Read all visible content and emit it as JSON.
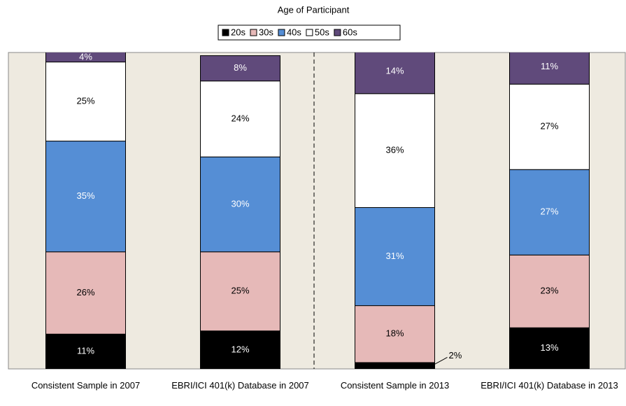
{
  "chart_data": {
    "type": "stacked_bar",
    "title": "Age of Participant",
    "categories": [
      "Consistent Sample in 2007",
      "EBRI/ICI 401(k) Database in 2007",
      "Consistent Sample in 2013",
      "EBRI/ICI 401(k) Database in 2013"
    ],
    "series": [
      {
        "name": "20s",
        "color": "#000000",
        "values": [
          11,
          12,
          2,
          13
        ],
        "value_labels": [
          "11%",
          "12%",
          "2%",
          "13%"
        ]
      },
      {
        "name": "30s",
        "color": "#e6b9b8",
        "values": [
          26,
          25,
          18,
          23
        ],
        "value_labels": [
          "26%",
          "25%",
          "18%",
          "23%"
        ]
      },
      {
        "name": "40s",
        "color": "#558ed5",
        "values": [
          35,
          30,
          31,
          27
        ],
        "value_labels": [
          "35%",
          "30%",
          "31%",
          "27%"
        ]
      },
      {
        "name": "50s",
        "color": "#ffffff",
        "values": [
          25,
          24,
          36,
          27
        ],
        "value_labels": [
          "25%",
          "24%",
          "36%",
          "27%"
        ]
      },
      {
        "name": "60s",
        "color": "#604a7b",
        "values": [
          4,
          8,
          14,
          11
        ],
        "value_labels": [
          "4%",
          "8%",
          "14%",
          "11%"
        ]
      }
    ],
    "ylim": [
      0,
      100
    ],
    "legend": "top"
  }
}
